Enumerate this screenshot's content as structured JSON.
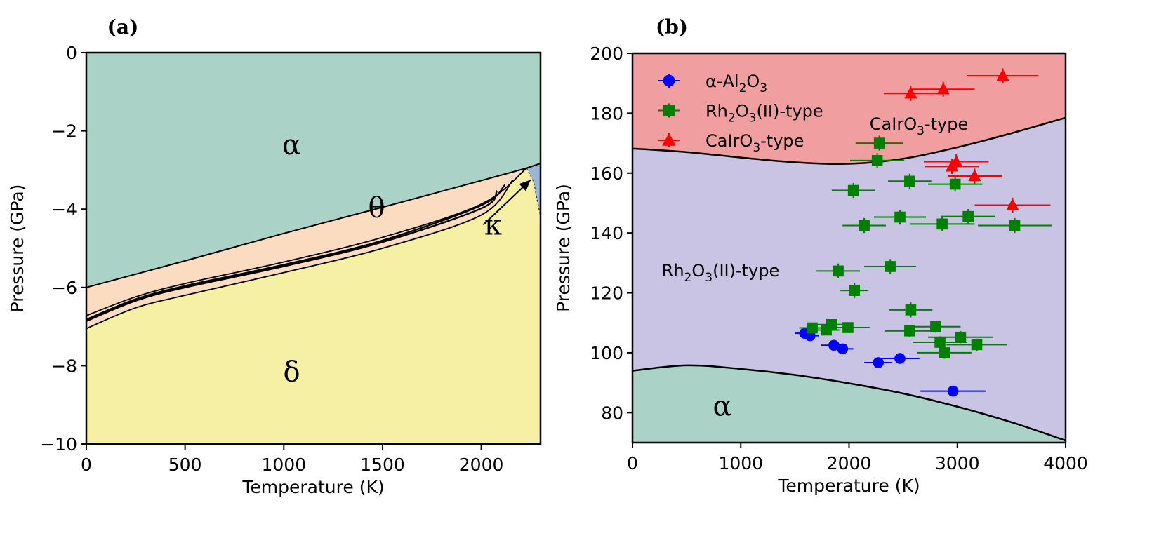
{
  "chart_data": [
    {
      "panel_label": "(a)",
      "type": "area",
      "xlabel": "Temperature (K)",
      "ylabel": "Pressure (GPa)",
      "xlim": [
        0,
        2300
      ],
      "ylim": [
        -10,
        0
      ],
      "xticks": [
        0,
        500,
        1000,
        1500,
        2000
      ],
      "xtick_labels": [
        "0",
        "500",
        "1000",
        "1500",
        "2000"
      ],
      "yticks": [
        0,
        -2,
        -4,
        -6,
        -8,
        -10
      ],
      "ytick_labels": [
        "0",
        "−2",
        "−4",
        "−6",
        "−8",
        "−10"
      ],
      "grid": false,
      "colors": {
        "alpha": "#abd2c6",
        "theta": "#fbdcc0",
        "delta": "#f5f0a3",
        "kappa": "#9bb5d6",
        "line": "#000000"
      },
      "region_labels": [
        {
          "text": "α",
          "x": 1040,
          "y": -2.6
        },
        {
          "text": "θ",
          "x": 1470,
          "y": -4.2
        },
        {
          "text": "κ",
          "x": 2060,
          "y": -4.65
        },
        {
          "text": "δ",
          "x": 1040,
          "y": -8.4
        }
      ],
      "boundaries": {
        "alpha_theta": {
          "x": [
            0,
            500,
            1000,
            1500,
            2000,
            2230
          ],
          "y": [
            -6.0,
            -5.32,
            -4.62,
            -3.95,
            -3.27,
            -2.95
          ]
        },
        "theta_delta": [
          {
            "x": [
              0,
              250,
              500,
              1000,
              1500,
              2000,
              2230
            ],
            "y": [
              -6.72,
              -6.24,
              -5.9,
              -5.35,
              -4.72,
              -3.87,
              -2.95
            ]
          },
          {
            "x": [
              0,
              250,
              500,
              1000,
              1500,
              2000,
              2120
            ],
            "y": [
              -6.82,
              -6.3,
              -5.96,
              -5.42,
              -4.8,
              -3.9,
              -3.38
            ]
          },
          {
            "x": [
              0,
              250,
              500,
              1000,
              1500,
              2000,
              2080
            ],
            "y": [
              -6.86,
              -6.34,
              -6.0,
              -5.46,
              -4.84,
              -3.98,
              -3.53
            ]
          },
          {
            "x": [
              0,
              250,
              500,
              1000,
              1500,
              2000,
              2160
            ],
            "y": [
              -7.05,
              -6.52,
              -6.2,
              -5.62,
              -5.0,
              -4.15,
              -3.25
            ]
          }
        ],
        "kappa_region": {
          "x": [
            2230,
            2300,
            2300,
            2265
          ],
          "y": [
            -2.95,
            -2.83,
            -4.2,
            -3.3
          ]
        }
      },
      "annotation_arrow": {
        "from": [
          2010,
          -4.4
        ],
        "to": [
          2250,
          -3.25
        ]
      }
    },
    {
      "panel_label": "(b)",
      "type": "scatter",
      "xlabel": "Temperature (K)",
      "ylabel": "Pressure (GPa)",
      "xlim": [
        0,
        4000
      ],
      "ylim": [
        70,
        200
      ],
      "xticks": [
        0,
        1000,
        2000,
        3000,
        4000
      ],
      "xtick_labels": [
        "0",
        "1000",
        "2000",
        "3000",
        "4000"
      ],
      "yticks": [
        80,
        100,
        120,
        140,
        160,
        180,
        200
      ],
      "ytick_labels": [
        "80",
        "100",
        "120",
        "140",
        "160",
        "180",
        "200"
      ],
      "grid": false,
      "legend_position": "top-left",
      "colors": {
        "alpha": "#abd2c6",
        "rh2o3": "#c9c3e4",
        "cairo3": "#f09ea0",
        "line": "#000000"
      },
      "region_labels": [
        {
          "text": "α",
          "x": 830,
          "y": 79
        },
        {
          "text_main": "Rh",
          "sub1": "2",
          "mid": "O",
          "sub2": "3",
          "tail": "(II)-type",
          "x": 270,
          "y": 125.5
        },
        {
          "text_main": "CaIrO",
          "sub1": "3",
          "tail": "-type",
          "x": 2190,
          "y": 174.5
        }
      ],
      "boundaries": {
        "alpha_rh2o3": {
          "x": [
            0,
            500,
            1000,
            1500,
            2000,
            2500,
            3000,
            3500,
            4000
          ],
          "y": [
            94.0,
            95.8,
            94.6,
            92.6,
            89.8,
            86.4,
            82.0,
            76.8,
            70.7
          ]
        },
        "rh2o3_cairo3": {
          "x": [
            0,
            500,
            1000,
            1500,
            2000,
            2500,
            3000,
            3500,
            4000
          ],
          "y": [
            168.2,
            167.0,
            165.2,
            163.6,
            163.1,
            164.8,
            168.6,
            173.3,
            178.5
          ]
        }
      },
      "series": [
        {
          "name": "α-Al2O3",
          "legend_parts": [
            "α-Al",
            "2",
            "O",
            "3",
            ""
          ],
          "marker": "circle",
          "color": "#0000ff",
          "points": [
            {
              "x": 1590,
              "y": 106.5,
              "xerr": 90,
              "yerr": 1.2
            },
            {
              "x": 1640,
              "y": 105.7,
              "xerr": 80,
              "yerr": 1.2
            },
            {
              "x": 1860,
              "y": 102.5,
              "xerr": 120,
              "yerr": 1.5
            },
            {
              "x": 1940,
              "y": 101.3,
              "xerr": 100,
              "yerr": 1.5
            },
            {
              "x": 2270,
              "y": 96.7,
              "xerr": 130,
              "yerr": 1.5
            },
            {
              "x": 2470,
              "y": 98.1,
              "xerr": 180,
              "yerr": 1.5
            },
            {
              "x": 2960,
              "y": 87.2,
              "xerr": 300,
              "yerr": 1.2
            }
          ]
        },
        {
          "name": "Rh2O3(II)-type",
          "legend_parts": [
            "Rh",
            "2",
            "O",
            "3",
            "(II)-type"
          ],
          "marker": "square",
          "color": "#008000",
          "points": [
            {
              "x": 2280,
              "y": 170.0,
              "xerr": 220,
              "yerr": 2.5
            },
            {
              "x": 2260,
              "y": 164.2,
              "xerr": 250,
              "yerr": 2.5
            },
            {
              "x": 2040,
              "y": 154.2,
              "xerr": 200,
              "yerr": 2.5
            },
            {
              "x": 2560,
              "y": 157.3,
              "xerr": 200,
              "yerr": 2.5
            },
            {
              "x": 2980,
              "y": 156.3,
              "xerr": 250,
              "yerr": 2.5
            },
            {
              "x": 2470,
              "y": 145.3,
              "xerr": 240,
              "yerr": 2.5
            },
            {
              "x": 3100,
              "y": 145.5,
              "xerr": 250,
              "yerr": 2.5
            },
            {
              "x": 2140,
              "y": 142.5,
              "xerr": 200,
              "yerr": 2.5
            },
            {
              "x": 2860,
              "y": 143.0,
              "xerr": 300,
              "yerr": 2.5
            },
            {
              "x": 3530,
              "y": 142.5,
              "xerr": 340,
              "yerr": 2.5
            },
            {
              "x": 1900,
              "y": 127.3,
              "xerr": 200,
              "yerr": 2.5
            },
            {
              "x": 2380,
              "y": 128.8,
              "xerr": 240,
              "yerr": 2.5
            },
            {
              "x": 2050,
              "y": 120.8,
              "xerr": 130,
              "yerr": 2.5
            },
            {
              "x": 2570,
              "y": 114.3,
              "xerr": 200,
              "yerr": 2.5
            },
            {
              "x": 1660,
              "y": 108.3,
              "xerr": 120,
              "yerr": 1.5
            },
            {
              "x": 1790,
              "y": 107.6,
              "xerr": 120,
              "yerr": 1.5
            },
            {
              "x": 1840,
              "y": 109.4,
              "xerr": 130,
              "yerr": 1.5
            },
            {
              "x": 1990,
              "y": 108.4,
              "xerr": 200,
              "yerr": 1.5
            },
            {
              "x": 2560,
              "y": 107.3,
              "xerr": 230,
              "yerr": 2
            },
            {
              "x": 2800,
              "y": 108.7,
              "xerr": 230,
              "yerr": 2
            },
            {
              "x": 2840,
              "y": 103.5,
              "xerr": 250,
              "yerr": 2
            },
            {
              "x": 3030,
              "y": 105.2,
              "xerr": 300,
              "yerr": 2
            },
            {
              "x": 2880,
              "y": 100.0,
              "xerr": 250,
              "yerr": 2
            },
            {
              "x": 3180,
              "y": 102.7,
              "xerr": 280,
              "yerr": 2
            }
          ]
        },
        {
          "name": "CaIrO3-type",
          "legend_parts": [
            "CaIrO",
            "3",
            "",
            "",
            "-type"
          ],
          "marker": "triangle",
          "color": "#ff0000",
          "points": [
            {
              "x": 3420,
              "y": 192.5,
              "xerr": 330,
              "yerr": 2.5
            },
            {
              "x": 2870,
              "y": 188.0,
              "xerr": 290,
              "yerr": 2.5
            },
            {
              "x": 2570,
              "y": 186.6,
              "xerr": 250,
              "yerr": 2.5
            },
            {
              "x": 2990,
              "y": 163.8,
              "xerr": 300,
              "yerr": 2.5
            },
            {
              "x": 2950,
              "y": 162.2,
              "xerr": 250,
              "yerr": 2.5
            },
            {
              "x": 3160,
              "y": 159.0,
              "xerr": 250,
              "yerr": 2.5
            },
            {
              "x": 3510,
              "y": 149.3,
              "xerr": 350,
              "yerr": 2.5
            }
          ]
        }
      ]
    }
  ]
}
